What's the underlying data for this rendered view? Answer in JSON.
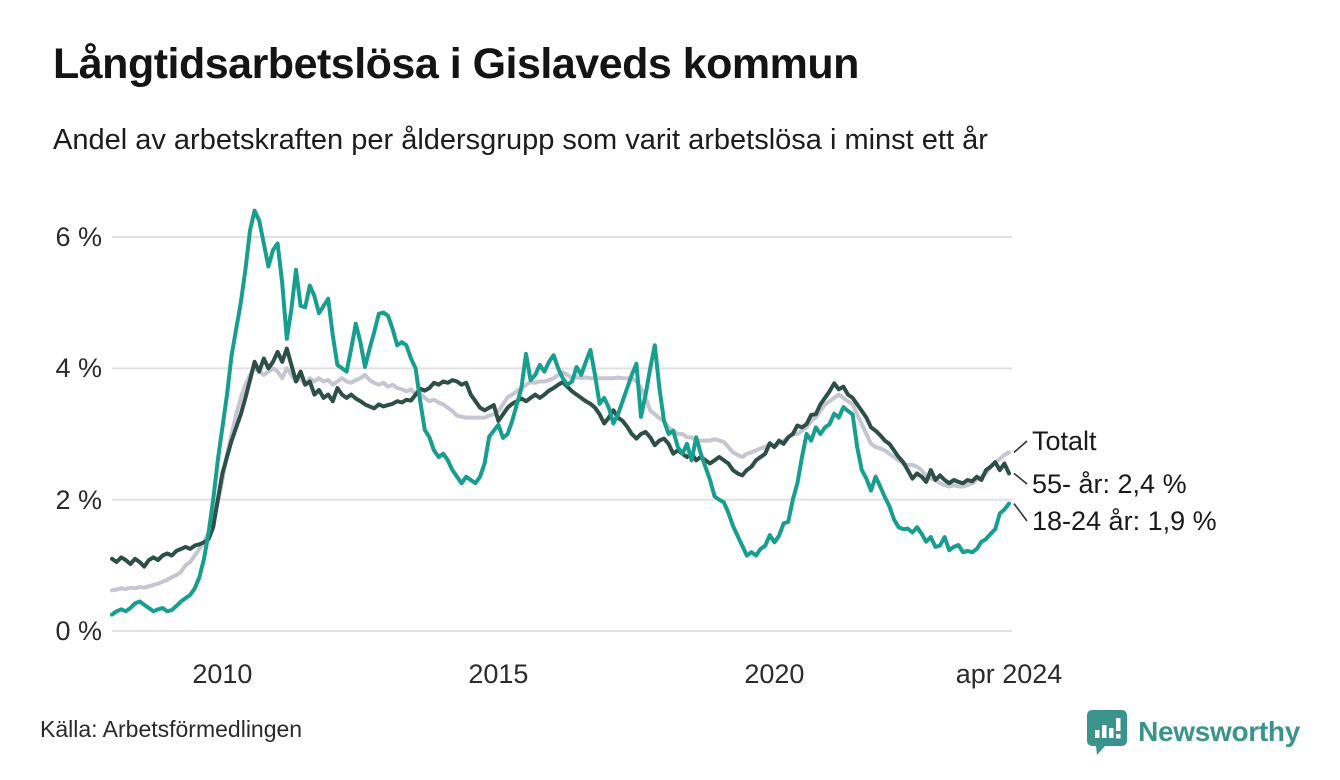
{
  "header": {
    "title": "Långtidsarbetslösa i Gislaveds kommun",
    "subtitle": "Andel av arbetskraften per åldersgrupp som varit arbetslösa i minst ett år"
  },
  "footer": {
    "source": "Källa: Arbetsförmedlingen",
    "logo_text": "Newsworthy"
  },
  "colors": {
    "teal_series": "#189e8f",
    "dark_green_series": "#2d4f47",
    "gray_series": "#c6c5d2",
    "gridline": "#e1e1e4",
    "connector": "#333333",
    "logo_teal": "#3a948c",
    "text": "#1a1a1a"
  },
  "chart_data": {
    "type": "line",
    "title": "Långtidsarbetslösa i Gislaveds kommun",
    "subtitle": "Andel av arbetskraften per åldersgrupp som varit arbetslösa i minst ett år",
    "x_start": "2008-01",
    "x_end": "2024-04",
    "frequency": "monthly",
    "unit": "percent of labour force",
    "ylim": [
      0,
      6.6
    ],
    "grid": true,
    "legend_position": "right-edge-labels",
    "yticks": [
      {
        "value": 0,
        "label": "0 %"
      },
      {
        "value": 2,
        "label": "2 %"
      },
      {
        "value": 4,
        "label": "4 %"
      },
      {
        "value": 6,
        "label": "6 %"
      }
    ],
    "xticks": [
      {
        "index": 24,
        "label": "2010"
      },
      {
        "index": 84,
        "label": "2015"
      },
      {
        "index": 144,
        "label": "2020"
      },
      {
        "index": 195,
        "label": "apr 2024"
      }
    ],
    "series": [
      {
        "name": "Totalt",
        "label": "Totalt",
        "color": "#c6c5d2",
        "values": [
          0.62,
          0.63,
          0.65,
          0.64,
          0.66,
          0.65,
          0.67,
          0.66,
          0.68,
          0.7,
          0.72,
          0.75,
          0.78,
          0.82,
          0.85,
          0.9,
          1.0,
          1.05,
          1.15,
          1.25,
          1.35,
          1.5,
          1.7,
          1.95,
          2.3,
          2.7,
          3.0,
          3.3,
          3.55,
          3.75,
          3.9,
          4.0,
          3.95,
          3.9,
          3.95,
          4.0,
          3.95,
          3.85,
          4.0,
          3.9,
          3.8,
          3.85,
          3.75,
          3.85,
          3.8,
          3.85,
          3.8,
          3.82,
          3.75,
          3.8,
          3.85,
          3.8,
          3.78,
          3.82,
          3.85,
          3.9,
          3.82,
          3.78,
          3.75,
          3.78,
          3.72,
          3.75,
          3.7,
          3.68,
          3.65,
          3.68,
          3.6,
          3.62,
          3.55,
          3.5,
          3.52,
          3.48,
          3.45,
          3.4,
          3.35,
          3.28,
          3.26,
          3.25,
          3.25,
          3.25,
          3.25,
          3.25,
          3.28,
          3.3,
          3.35,
          3.45,
          3.56,
          3.6,
          3.65,
          3.7,
          3.75,
          3.79,
          3.78,
          3.8,
          3.8,
          3.82,
          3.85,
          3.9,
          3.94,
          3.9,
          3.85,
          3.87,
          3.85,
          3.86,
          3.85,
          3.85,
          3.85,
          3.85,
          3.85,
          3.85,
          3.86,
          3.85,
          3.85,
          3.85,
          3.8,
          3.7,
          3.55,
          3.36,
          3.3,
          3.24,
          3.2,
          3.1,
          3.05,
          3.0,
          3.0,
          2.95,
          2.95,
          2.9,
          2.9,
          2.9,
          2.9,
          2.92,
          2.9,
          2.88,
          2.8,
          2.72,
          2.68,
          2.65,
          2.7,
          2.72,
          2.75,
          2.78,
          2.8,
          2.85,
          2.8,
          2.85,
          2.9,
          2.95,
          3.0,
          3.0,
          3.05,
          3.1,
          3.2,
          3.25,
          3.35,
          3.45,
          3.5,
          3.55,
          3.6,
          3.55,
          3.5,
          3.45,
          3.3,
          3.15,
          3.0,
          2.85,
          2.8,
          2.78,
          2.75,
          2.7,
          2.65,
          2.6,
          2.55,
          2.53,
          2.53,
          2.5,
          2.45,
          2.35,
          2.32,
          2.3,
          2.25,
          2.22,
          2.2,
          2.22,
          2.2,
          2.2,
          2.22,
          2.25,
          2.3,
          2.35,
          2.4,
          2.5,
          2.57,
          2.62,
          2.68,
          2.72
        ]
      },
      {
        "name": "55- år",
        "label": "55- år: 2,4 %",
        "last_value_display": "2,4 %",
        "color": "#2d4f47",
        "values": [
          1.1,
          1.05,
          1.12,
          1.08,
          1.02,
          1.1,
          1.05,
          0.98,
          1.08,
          1.12,
          1.08,
          1.15,
          1.18,
          1.15,
          1.22,
          1.25,
          1.28,
          1.25,
          1.3,
          1.32,
          1.35,
          1.4,
          1.58,
          2.0,
          2.4,
          2.65,
          2.9,
          3.1,
          3.3,
          3.55,
          3.82,
          4.1,
          3.95,
          4.15,
          4.0,
          4.1,
          4.25,
          4.1,
          4.3,
          4.05,
          3.8,
          3.95,
          3.75,
          3.8,
          3.6,
          3.67,
          3.55,
          3.6,
          3.5,
          3.7,
          3.6,
          3.55,
          3.6,
          3.54,
          3.5,
          3.45,
          3.42,
          3.39,
          3.45,
          3.42,
          3.44,
          3.46,
          3.5,
          3.48,
          3.52,
          3.51,
          3.6,
          3.69,
          3.66,
          3.7,
          3.78,
          3.75,
          3.8,
          3.78,
          3.82,
          3.8,
          3.75,
          3.78,
          3.6,
          3.5,
          3.4,
          3.36,
          3.4,
          3.44,
          3.2,
          3.3,
          3.4,
          3.46,
          3.5,
          3.54,
          3.5,
          3.55,
          3.6,
          3.55,
          3.6,
          3.66,
          3.7,
          3.75,
          3.79,
          3.72,
          3.65,
          3.6,
          3.55,
          3.5,
          3.46,
          3.4,
          3.3,
          3.16,
          3.25,
          3.36,
          3.25,
          3.2,
          3.11,
          3.0,
          2.93,
          3.0,
          3.03,
          2.95,
          2.83,
          2.9,
          2.93,
          2.85,
          2.7,
          2.75,
          2.7,
          2.65,
          2.7,
          2.6,
          2.65,
          2.6,
          2.55,
          2.6,
          2.65,
          2.6,
          2.55,
          2.45,
          2.4,
          2.37,
          2.45,
          2.5,
          2.6,
          2.65,
          2.7,
          2.86,
          2.8,
          2.9,
          2.85,
          2.95,
          3.0,
          3.13,
          3.1,
          3.15,
          3.29,
          3.3,
          3.45,
          3.55,
          3.65,
          3.77,
          3.68,
          3.72,
          3.6,
          3.55,
          3.45,
          3.35,
          3.25,
          3.1,
          3.05,
          2.98,
          2.9,
          2.85,
          2.75,
          2.65,
          2.57,
          2.45,
          2.32,
          2.4,
          2.35,
          2.27,
          2.45,
          2.3,
          2.37,
          2.3,
          2.25,
          2.3,
          2.27,
          2.25,
          2.3,
          2.28,
          2.35,
          2.3,
          2.45,
          2.5,
          2.57,
          2.45,
          2.55,
          2.4
        ]
      },
      {
        "name": "18-24 år",
        "label": "18-24 år: 1,9 %",
        "last_value_display": "1,9 %",
        "color": "#189e8f",
        "values": [
          0.25,
          0.3,
          0.33,
          0.3,
          0.35,
          0.42,
          0.45,
          0.4,
          0.35,
          0.3,
          0.33,
          0.35,
          0.3,
          0.32,
          0.38,
          0.45,
          0.5,
          0.55,
          0.65,
          0.82,
          1.1,
          1.5,
          2.0,
          2.6,
          3.1,
          3.6,
          4.2,
          4.6,
          5.0,
          5.5,
          6.1,
          6.4,
          6.25,
          5.9,
          5.55,
          5.8,
          5.9,
          5.3,
          4.45,
          4.9,
          5.5,
          4.95,
          4.93,
          5.26,
          5.1,
          4.84,
          4.95,
          5.06,
          4.5,
          4.05,
          4.0,
          3.95,
          4.3,
          4.68,
          4.4,
          4.02,
          4.3,
          4.55,
          4.83,
          4.85,
          4.8,
          4.6,
          4.35,
          4.4,
          4.35,
          4.15,
          4.0,
          3.5,
          3.06,
          2.95,
          2.75,
          2.65,
          2.7,
          2.6,
          2.45,
          2.35,
          2.25,
          2.35,
          2.3,
          2.25,
          2.35,
          2.55,
          2.96,
          3.05,
          3.14,
          2.94,
          3.0,
          3.2,
          3.45,
          3.7,
          4.22,
          3.82,
          3.9,
          4.05,
          3.95,
          4.1,
          4.2,
          4.0,
          3.85,
          3.75,
          3.8,
          4.02,
          3.9,
          4.1,
          4.28,
          3.9,
          3.46,
          3.55,
          3.4,
          3.16,
          3.3,
          3.5,
          3.7,
          3.9,
          4.07,
          3.26,
          3.6,
          4.0,
          4.35,
          3.7,
          3.2,
          3.0,
          3.05,
          2.8,
          2.7,
          2.85,
          2.6,
          2.95,
          2.7,
          2.5,
          2.3,
          2.05,
          2.0,
          1.96,
          1.8,
          1.6,
          1.45,
          1.3,
          1.15,
          1.2,
          1.15,
          1.25,
          1.3,
          1.46,
          1.35,
          1.45,
          1.64,
          1.66,
          2.0,
          2.25,
          2.65,
          3.0,
          2.9,
          3.1,
          3.0,
          3.1,
          3.15,
          3.31,
          3.25,
          3.41,
          3.35,
          3.3,
          2.8,
          2.45,
          2.32,
          2.14,
          2.35,
          2.2,
          2.04,
          1.9,
          1.7,
          1.58,
          1.55,
          1.56,
          1.5,
          1.58,
          1.48,
          1.36,
          1.43,
          1.28,
          1.3,
          1.43,
          1.23,
          1.28,
          1.31,
          1.2,
          1.22,
          1.2,
          1.25,
          1.36,
          1.4,
          1.48,
          1.55,
          1.79,
          1.85,
          1.94
        ]
      }
    ]
  }
}
